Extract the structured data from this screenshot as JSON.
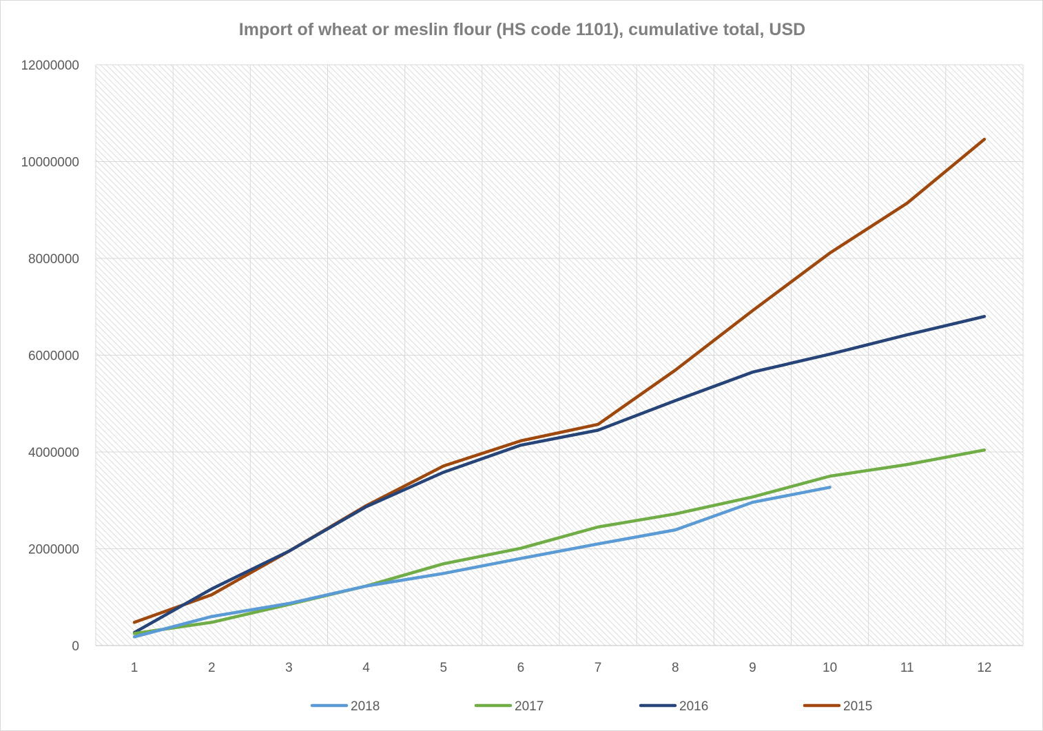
{
  "chart_data": {
    "type": "line",
    "title": "Import of wheat or meslin flour (HS code 1101), cumulative total, USD",
    "xlabel": "",
    "ylabel": "",
    "categories": [
      "1",
      "2",
      "3",
      "4",
      "5",
      "6",
      "7",
      "8",
      "9",
      "10",
      "11",
      "12"
    ],
    "ylim": [
      0,
      12000000
    ],
    "yticks": [
      0,
      2000000,
      4000000,
      6000000,
      8000000,
      10000000,
      12000000
    ],
    "ytick_labels": [
      "0",
      "2000000",
      "4000000",
      "6000000",
      "8000000",
      "10000000",
      "12000000"
    ],
    "grid": true,
    "plot_background": "hatched",
    "legend_position": "bottom",
    "series": [
      {
        "name": "2018",
        "color": "#5b9bd5",
        "values": [
          180000,
          600000,
          870000,
          1230000,
          1490000,
          1800000,
          2100000,
          2390000,
          2960000,
          3270000,
          null,
          null
        ]
      },
      {
        "name": "2017",
        "color": "#70ad47",
        "values": [
          250000,
          480000,
          850000,
          1230000,
          1690000,
          2010000,
          2450000,
          2720000,
          3070000,
          3500000,
          3740000,
          4040000
        ]
      },
      {
        "name": "2016",
        "color": "#264478",
        "values": [
          270000,
          1170000,
          1950000,
          2870000,
          3580000,
          4140000,
          4450000,
          5060000,
          5650000,
          6020000,
          6420000,
          6800000
        ]
      },
      {
        "name": "2015",
        "color": "#9e480e",
        "values": [
          480000,
          1050000,
          1950000,
          2890000,
          3710000,
          4230000,
          4570000,
          5690000,
          6920000,
          8110000,
          9140000,
          10460000
        ]
      }
    ]
  }
}
